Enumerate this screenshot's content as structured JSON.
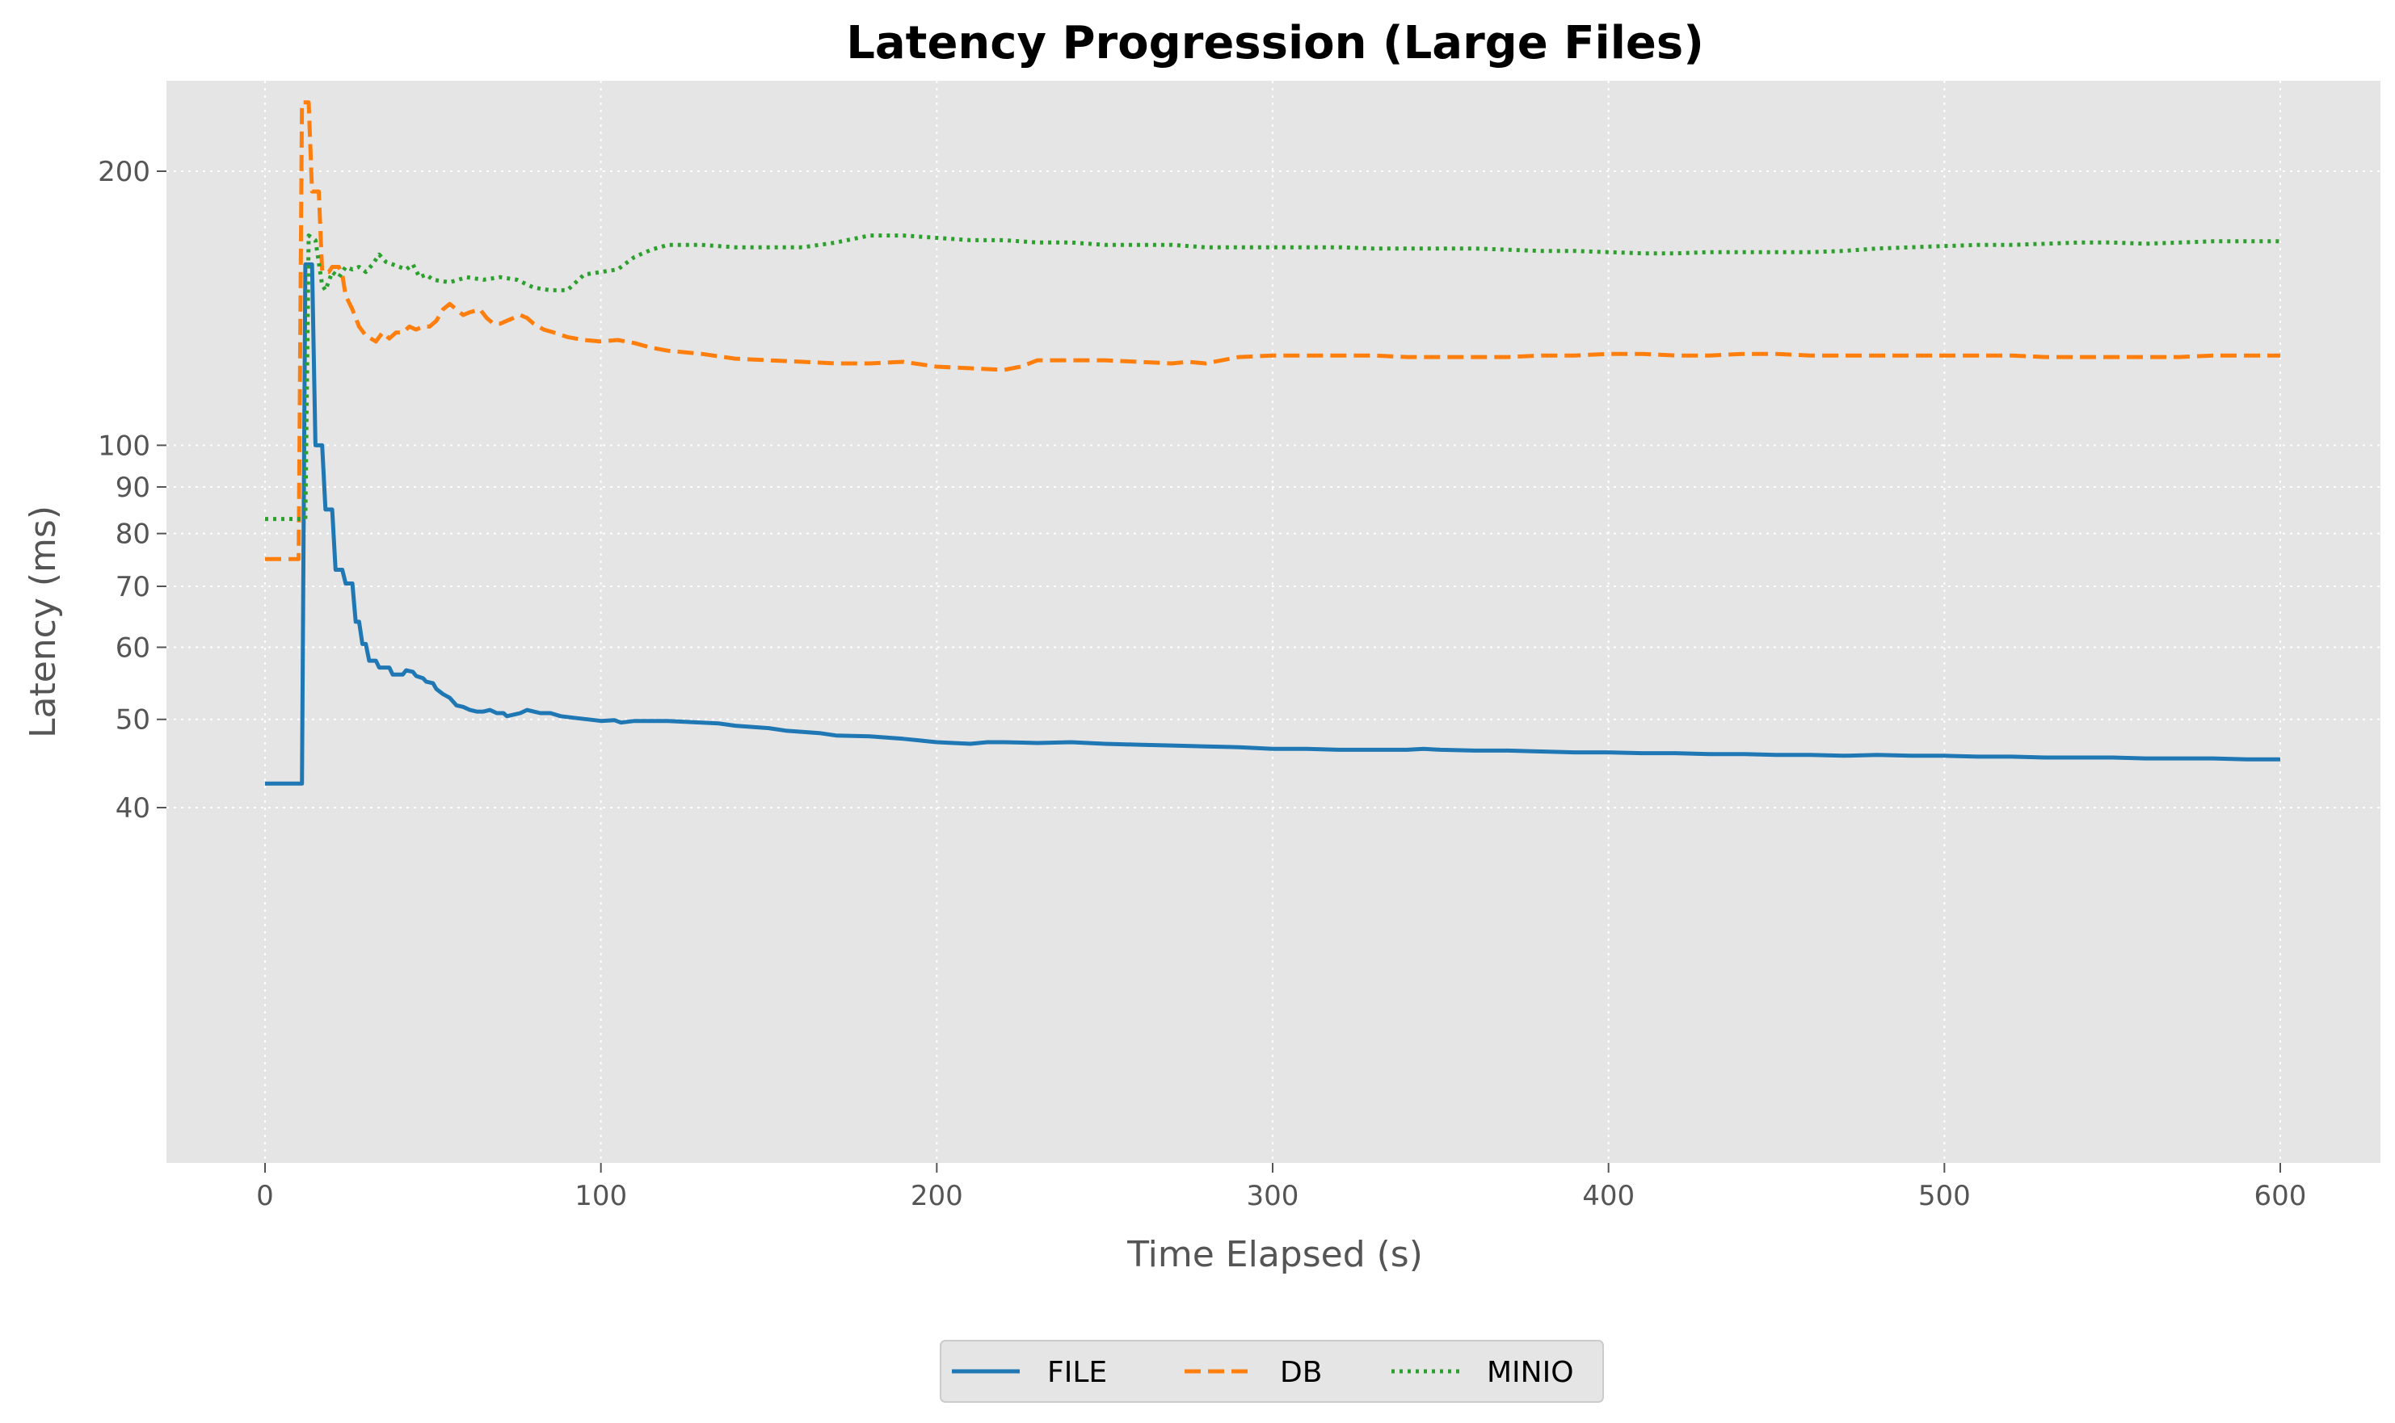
{
  "chart_data": {
    "type": "line",
    "title": "Latency Progression (Large Files)",
    "xlabel": "Time Elapsed (s)",
    "ylabel": "Latency (ms)",
    "yscale": "log",
    "xlim": [
      -30,
      630
    ],
    "ylim": [
      38.5,
      255
    ],
    "xticks": [
      0,
      100,
      200,
      300,
      400,
      500,
      600
    ],
    "xtick_labels": [
      "0",
      "100",
      "200",
      "300",
      "400",
      "500",
      "600"
    ],
    "yticks": [
      40,
      50,
      60,
      70,
      80,
      90,
      100,
      200
    ],
    "ytick_labels": [
      "40",
      "50",
      "60",
      "70",
      "80",
      "90",
      "100",
      "200"
    ],
    "grid": true,
    "legend_position": "bottom-center",
    "colors": {
      "FILE": "#1f77b4",
      "DB": "#ff7f0e",
      "MINIO": "#2ca02c",
      "plot_background": "#e5e5e5",
      "grid": "#ffffff"
    },
    "series": [
      {
        "name": "FILE",
        "line_style": "solid",
        "points": [
          [
            0,
            42.5
          ],
          [
            11,
            42.5
          ],
          [
            12,
            158
          ],
          [
            14,
            158
          ],
          [
            15,
            100
          ],
          [
            17,
            100
          ],
          [
            18,
            85
          ],
          [
            20,
            85
          ],
          [
            21,
            73
          ],
          [
            23,
            73
          ],
          [
            24,
            70.5
          ],
          [
            26,
            70.5
          ],
          [
            27,
            64
          ],
          [
            28,
            64
          ],
          [
            29,
            60.5
          ],
          [
            30,
            60.5
          ],
          [
            31,
            58
          ],
          [
            33,
            58
          ],
          [
            34,
            57
          ],
          [
            37,
            57
          ],
          [
            38,
            56
          ],
          [
            41,
            56
          ],
          [
            42,
            56.6
          ],
          [
            44,
            56.4
          ],
          [
            45,
            55.8
          ],
          [
            47,
            55.5
          ],
          [
            48,
            55
          ],
          [
            50,
            54.8
          ],
          [
            51,
            54
          ],
          [
            53,
            53.3
          ],
          [
            55,
            52.8
          ],
          [
            57,
            51.8
          ],
          [
            59,
            51.6
          ],
          [
            61,
            51.2
          ],
          [
            63,
            51
          ],
          [
            65,
            51
          ],
          [
            67,
            51.2
          ],
          [
            69,
            50.8
          ],
          [
            71,
            50.8
          ],
          [
            72,
            50.4
          ],
          [
            74,
            50.6
          ],
          [
            76,
            50.8
          ],
          [
            78,
            51.2
          ],
          [
            80,
            51
          ],
          [
            82,
            50.8
          ],
          [
            85,
            50.8
          ],
          [
            88,
            50.4
          ],
          [
            92,
            50.2
          ],
          [
            96,
            50
          ],
          [
            100,
            49.8
          ],
          [
            104,
            49.9
          ],
          [
            106,
            49.6
          ],
          [
            110,
            49.8
          ],
          [
            120,
            49.8
          ],
          [
            130,
            49.6
          ],
          [
            135,
            49.5
          ],
          [
            140,
            49.2
          ],
          [
            150,
            48.9
          ],
          [
            155,
            48.6
          ],
          [
            165,
            48.3
          ],
          [
            170,
            48
          ],
          [
            180,
            47.9
          ],
          [
            190,
            47.6
          ],
          [
            195,
            47.4
          ],
          [
            200,
            47.2
          ],
          [
            205,
            47.1
          ],
          [
            210,
            47
          ],
          [
            215,
            47.2
          ],
          [
            220,
            47.2
          ],
          [
            230,
            47.1
          ],
          [
            240,
            47.2
          ],
          [
            245,
            47.1
          ],
          [
            250,
            47
          ],
          [
            260,
            46.9
          ],
          [
            270,
            46.8
          ],
          [
            280,
            46.7
          ],
          [
            290,
            46.6
          ],
          [
            300,
            46.4
          ],
          [
            310,
            46.4
          ],
          [
            320,
            46.3
          ],
          [
            330,
            46.3
          ],
          [
            340,
            46.3
          ],
          [
            345,
            46.4
          ],
          [
            350,
            46.3
          ],
          [
            360,
            46.2
          ],
          [
            370,
            46.2
          ],
          [
            380,
            46.1
          ],
          [
            390,
            46
          ],
          [
            400,
            46
          ],
          [
            410,
            45.9
          ],
          [
            420,
            45.9
          ],
          [
            430,
            45.8
          ],
          [
            440,
            45.8
          ],
          [
            450,
            45.7
          ],
          [
            460,
            45.7
          ],
          [
            470,
            45.6
          ],
          [
            480,
            45.7
          ],
          [
            490,
            45.6
          ],
          [
            500,
            45.6
          ],
          [
            510,
            45.5
          ],
          [
            520,
            45.5
          ],
          [
            530,
            45.4
          ],
          [
            540,
            45.4
          ],
          [
            550,
            45.4
          ],
          [
            560,
            45.3
          ],
          [
            570,
            45.3
          ],
          [
            580,
            45.3
          ],
          [
            590,
            45.2
          ],
          [
            600,
            45.2
          ]
        ]
      },
      {
        "name": "DB",
        "line_style": "dashed",
        "points": [
          [
            0,
            75
          ],
          [
            10,
            75
          ],
          [
            11,
            238
          ],
          [
            13,
            238
          ],
          [
            14,
            190
          ],
          [
            16,
            190
          ],
          [
            17,
            155
          ],
          [
            19,
            155
          ],
          [
            20,
            157
          ],
          [
            22,
            157
          ],
          [
            23,
            154
          ],
          [
            24,
            146
          ],
          [
            26,
            141
          ],
          [
            28,
            135
          ],
          [
            30,
            132
          ],
          [
            33,
            130
          ],
          [
            35,
            133
          ],
          [
            37,
            131
          ],
          [
            39,
            133
          ],
          [
            41,
            133
          ],
          [
            43,
            135
          ],
          [
            45,
            134
          ],
          [
            47,
            135
          ],
          [
            49,
            135
          ],
          [
            51,
            137
          ],
          [
            53,
            141
          ],
          [
            55,
            143
          ],
          [
            57,
            141
          ],
          [
            59,
            139
          ],
          [
            61,
            140
          ],
          [
            64,
            141
          ],
          [
            66,
            138
          ],
          [
            68,
            136
          ],
          [
            70,
            136
          ],
          [
            72,
            137
          ],
          [
            74,
            138
          ],
          [
            76,
            139
          ],
          [
            78,
            138
          ],
          [
            80,
            136
          ],
          [
            83,
            134
          ],
          [
            86,
            133
          ],
          [
            90,
            131.5
          ],
          [
            95,
            130.5
          ],
          [
            100,
            130
          ],
          [
            105,
            130.5
          ],
          [
            110,
            129.5
          ],
          [
            115,
            128
          ],
          [
            120,
            127
          ],
          [
            130,
            126
          ],
          [
            140,
            124.5
          ],
          [
            150,
            124
          ],
          [
            160,
            123.5
          ],
          [
            170,
            123
          ],
          [
            180,
            123
          ],
          [
            190,
            123.5
          ],
          [
            200,
            122
          ],
          [
            210,
            121.5
          ],
          [
            220,
            121
          ],
          [
            225,
            122
          ],
          [
            230,
            124
          ],
          [
            240,
            124
          ],
          [
            250,
            124
          ],
          [
            260,
            123.5
          ],
          [
            270,
            123
          ],
          [
            275,
            123.5
          ],
          [
            280,
            123
          ],
          [
            290,
            125
          ],
          [
            300,
            125.5
          ],
          [
            310,
            125.5
          ],
          [
            320,
            125.5
          ],
          [
            330,
            125.5
          ],
          [
            340,
            125
          ],
          [
            350,
            125
          ],
          [
            360,
            125
          ],
          [
            370,
            125
          ],
          [
            380,
            125.5
          ],
          [
            390,
            125.5
          ],
          [
            400,
            126
          ],
          [
            410,
            126
          ],
          [
            420,
            125.5
          ],
          [
            430,
            125.5
          ],
          [
            440,
            126
          ],
          [
            450,
            126
          ],
          [
            460,
            125.5
          ],
          [
            470,
            125.5
          ],
          [
            480,
            125.5
          ],
          [
            490,
            125.5
          ],
          [
            500,
            125.5
          ],
          [
            510,
            125.5
          ],
          [
            520,
            125.5
          ],
          [
            530,
            125
          ],
          [
            540,
            125
          ],
          [
            550,
            125
          ],
          [
            560,
            125
          ],
          [
            570,
            125
          ],
          [
            580,
            125.5
          ],
          [
            590,
            125.5
          ],
          [
            600,
            125.5
          ]
        ]
      },
      {
        "name": "MINIO",
        "line_style": "dotted",
        "points": [
          [
            0,
            83
          ],
          [
            12,
            83
          ],
          [
            13,
            170
          ],
          [
            15,
            168
          ],
          [
            17,
            150
          ],
          [
            18,
            148
          ],
          [
            20,
            155
          ],
          [
            22,
            153
          ],
          [
            24,
            157
          ],
          [
            26,
            156
          ],
          [
            28,
            157
          ],
          [
            30,
            155
          ],
          [
            32,
            158
          ],
          [
            34,
            162
          ],
          [
            36,
            159
          ],
          [
            38,
            158
          ],
          [
            40,
            157
          ],
          [
            42,
            156
          ],
          [
            44,
            158
          ],
          [
            46,
            153
          ],
          [
            48,
            154
          ],
          [
            50,
            152
          ],
          [
            55,
            151
          ],
          [
            60,
            153
          ],
          [
            65,
            152
          ],
          [
            70,
            153
          ],
          [
            75,
            152
          ],
          [
            80,
            149
          ],
          [
            85,
            148
          ],
          [
            90,
            148
          ],
          [
            95,
            154
          ],
          [
            100,
            155
          ],
          [
            105,
            156
          ],
          [
            110,
            161
          ],
          [
            115,
            164
          ],
          [
            120,
            166
          ],
          [
            130,
            166
          ],
          [
            140,
            165
          ],
          [
            150,
            165
          ],
          [
            160,
            165
          ],
          [
            170,
            167
          ],
          [
            180,
            170
          ],
          [
            190,
            170
          ],
          [
            200,
            169
          ],
          [
            210,
            168
          ],
          [
            220,
            168
          ],
          [
            230,
            167
          ],
          [
            240,
            167
          ],
          [
            250,
            166
          ],
          [
            260,
            166
          ],
          [
            270,
            166
          ],
          [
            280,
            165
          ],
          [
            290,
            165
          ],
          [
            300,
            165
          ],
          [
            310,
            165
          ],
          [
            320,
            165
          ],
          [
            330,
            164.5
          ],
          [
            340,
            164.5
          ],
          [
            350,
            164.5
          ],
          [
            360,
            164.5
          ],
          [
            370,
            164
          ],
          [
            380,
            163.5
          ],
          [
            390,
            163.5
          ],
          [
            400,
            163
          ],
          [
            410,
            162.5
          ],
          [
            420,
            162.5
          ],
          [
            430,
            163
          ],
          [
            440,
            163
          ],
          [
            450,
            163
          ],
          [
            460,
            163
          ],
          [
            470,
            163.5
          ],
          [
            480,
            164.5
          ],
          [
            490,
            165
          ],
          [
            500,
            165.5
          ],
          [
            510,
            166
          ],
          [
            520,
            166
          ],
          [
            530,
            166.5
          ],
          [
            540,
            167
          ],
          [
            550,
            167
          ],
          [
            560,
            166.5
          ],
          [
            570,
            167
          ],
          [
            580,
            167.5
          ],
          [
            590,
            167.5
          ],
          [
            600,
            167.5
          ]
        ]
      }
    ]
  }
}
